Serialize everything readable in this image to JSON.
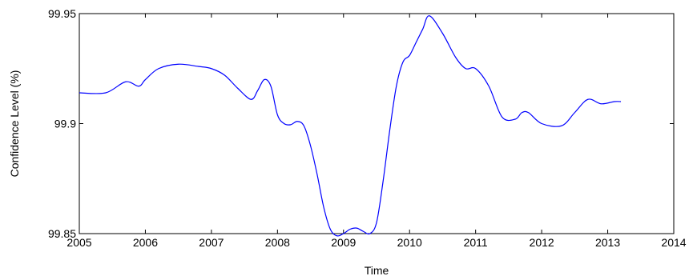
{
  "chart_data": {
    "type": "line",
    "title": "",
    "xlabel": "Time",
    "ylabel": "Confidence Level (%)",
    "xlim": [
      2005,
      2014
    ],
    "ylim": [
      99.85,
      99.95
    ],
    "xticks": [
      "2005",
      "2006",
      "2007",
      "2008",
      "2009",
      "2010",
      "2011",
      "2012",
      "2013",
      "2014"
    ],
    "yticks": [
      "99.85",
      "99.9",
      "99.95"
    ],
    "grid": false,
    "line_color": "#0000ff",
    "series": [
      {
        "x": [
          2005.0,
          2005.4,
          2005.7,
          2005.9,
          2006.0,
          2006.2,
          2006.5,
          2006.8,
          2007.0,
          2007.2,
          2007.4,
          2007.6,
          2007.7,
          2007.8,
          2007.9,
          2008.0,
          2008.1,
          2008.2,
          2008.3,
          2008.4,
          2008.5,
          2008.6,
          2008.7,
          2008.8,
          2008.9,
          2009.0,
          2009.1,
          2009.2,
          2009.3,
          2009.4,
          2009.5,
          2009.6,
          2009.7,
          2009.8,
          2009.9,
          2010.0,
          2010.1,
          2010.2,
          2010.3,
          2010.5,
          2010.7,
          2010.85,
          2011.0,
          2011.2,
          2011.4,
          2011.6,
          2011.7,
          2011.8,
          2012.0,
          2012.3,
          2012.5,
          2012.7,
          2012.9,
          2013.1,
          2013.2
        ],
        "y": [
          99.914,
          99.914,
          99.919,
          99.917,
          99.92,
          99.925,
          99.927,
          99.926,
          99.925,
          99.922,
          99.916,
          99.911,
          99.915,
          99.92,
          99.917,
          99.904,
          99.9,
          99.8995,
          99.901,
          99.899,
          99.89,
          99.877,
          99.862,
          99.852,
          99.849,
          99.85,
          99.852,
          99.8525,
          99.851,
          99.85,
          99.855,
          99.874,
          99.897,
          99.917,
          99.928,
          99.931,
          99.937,
          99.943,
          99.949,
          99.941,
          99.93,
          99.925,
          99.925,
          99.917,
          99.903,
          99.902,
          99.905,
          99.905,
          99.9,
          99.899,
          99.905,
          99.911,
          99.909,
          99.91,
          99.91
        ]
      }
    ]
  }
}
